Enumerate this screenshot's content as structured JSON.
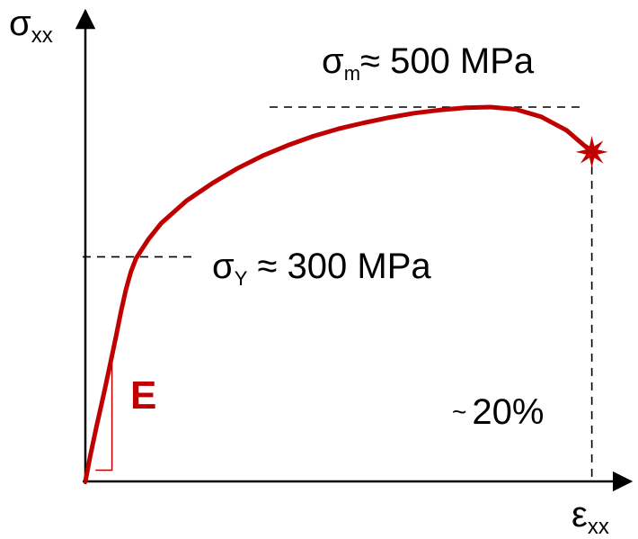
{
  "chart_data": {
    "type": "line",
    "title": "",
    "series": [
      {
        "values": [
          [
            0,
            0
          ],
          [
            0.2,
            35
          ],
          [
            0.45,
            75
          ],
          [
            0.75,
            120
          ],
          [
            1.0,
            160
          ],
          [
            1.2,
            192
          ],
          [
            1.4,
            226
          ],
          [
            1.6,
            256
          ],
          [
            1.8,
            280
          ],
          [
            2.0,
            298
          ],
          [
            2.5,
            324
          ],
          [
            3.0,
            345
          ],
          [
            4.0,
            375
          ],
          [
            5.0,
            398
          ],
          [
            6.0,
            418
          ],
          [
            7.0,
            435
          ],
          [
            8.0,
            449
          ],
          [
            9.0,
            461
          ],
          [
            10.0,
            471
          ],
          [
            11.0,
            479
          ],
          [
            12.0,
            486
          ],
          [
            13.0,
            492
          ],
          [
            14.0,
            496
          ],
          [
            15.0,
            499
          ],
          [
            16.0,
            500
          ],
          [
            17.0,
            497
          ],
          [
            18.0,
            487
          ],
          [
            19.0,
            469
          ],
          [
            20.0,
            440
          ]
        ]
      }
    ],
    "xlim": [
      0,
      22
    ],
    "ylim": [
      0,
      625
    ],
    "grid": false,
    "colors": {
      "curve": "#c00000",
      "axes": "#000000",
      "guides": "#000000"
    }
  },
  "labels": {
    "y_axis_symbol": "σ",
    "y_axis_subscript": "xx",
    "x_axis_symbol": "ε",
    "x_axis_subscript": "xx",
    "uts_symbol": "σ",
    "uts_subscript": "m",
    "uts_value": "≈ 500 MPa",
    "yield_symbol": "σ",
    "yield_subscript": "Y",
    "yield_value": " ≈ 300 MPa",
    "strain_prefix": "~",
    "strain_value": "20%",
    "modulus": "E"
  },
  "markers": {
    "fracture": {
      "icon": "fracture-star-icon",
      "x": 20.0,
      "y": 440
    },
    "yield": {
      "x": 2.0,
      "y": 300
    },
    "uts": {
      "x": 16.0,
      "y": 500
    },
    "slope_triangle": {
      "x0": 0.4,
      "x1": 1.05,
      "y0": 0,
      "y1": 170
    }
  }
}
